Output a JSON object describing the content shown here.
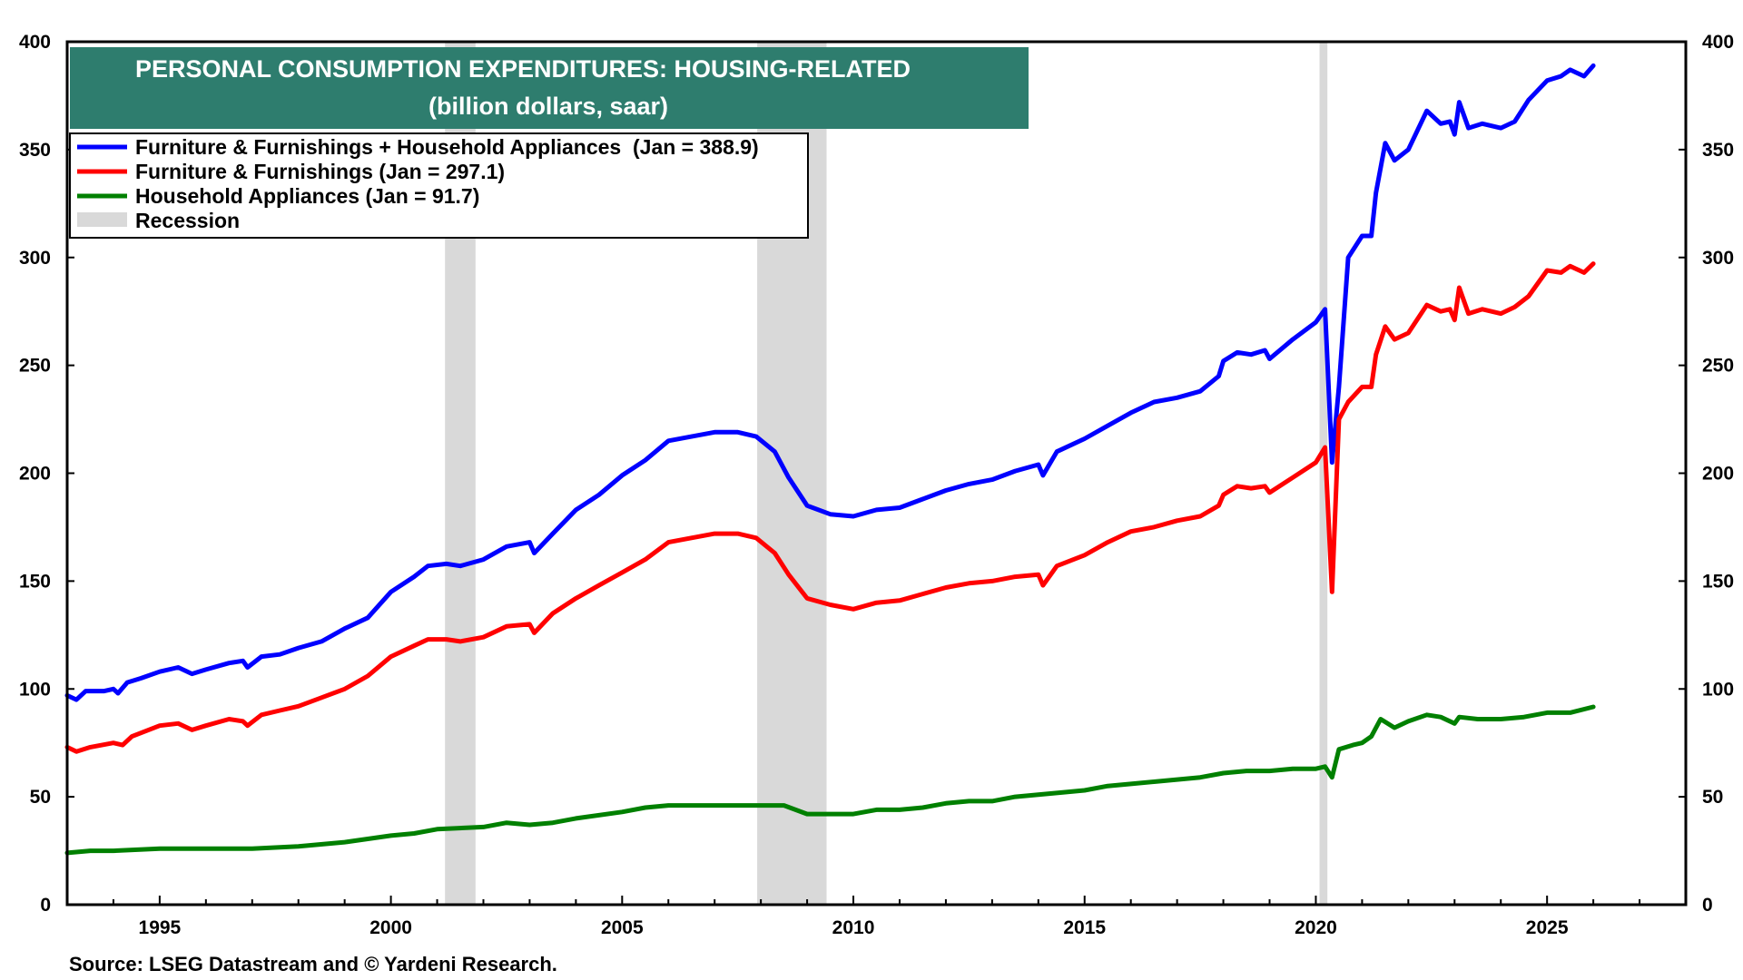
{
  "chart_data": {
    "type": "line",
    "title": "PERSONAL CONSUMPTION EXPENDITURES: HOUSING-RELATED",
    "subtitle": "(billion dollars, saar)",
    "source": "Source: LSEG Datastream and © Yardeni Research.",
    "xlim": [
      1993.0,
      2028.0
    ],
    "ylim": [
      0,
      400
    ],
    "y_ticks": [
      0,
      50,
      100,
      150,
      200,
      250,
      300,
      350,
      400
    ],
    "x_ticks": [
      1995,
      2000,
      2005,
      2010,
      2015,
      2020,
      2025
    ],
    "y_tick_labels": [
      "0",
      "50",
      "100",
      "150",
      "200",
      "250",
      "300",
      "350",
      "400"
    ],
    "x_tick_labels": [
      "1995",
      "2000",
      "2005",
      "2010",
      "2015",
      "2020",
      "2025"
    ],
    "legend_placement": "top-left",
    "recession_label": "Recession",
    "recessions": [
      [
        2001.17,
        2001.83
      ],
      [
        2007.92,
        2009.42
      ],
      [
        2020.08,
        2020.25
      ]
    ],
    "series": [
      {
        "name": "Furniture & Furnishings + Household Appliances  (Jan = 388.9)",
        "color": "#0000ff",
        "points": [
          [
            1993.0,
            97
          ],
          [
            1993.2,
            95
          ],
          [
            1993.4,
            99
          ],
          [
            1993.8,
            99
          ],
          [
            1994.0,
            100
          ],
          [
            1994.1,
            98
          ],
          [
            1994.3,
            103
          ],
          [
            1994.6,
            105
          ],
          [
            1995.0,
            108
          ],
          [
            1995.4,
            110
          ],
          [
            1995.7,
            107
          ],
          [
            1996.0,
            109
          ],
          [
            1996.5,
            112
          ],
          [
            1996.8,
            113
          ],
          [
            1996.9,
            110
          ],
          [
            1997.2,
            115
          ],
          [
            1997.6,
            116
          ],
          [
            1998.0,
            119
          ],
          [
            1998.5,
            122
          ],
          [
            1999.0,
            128
          ],
          [
            1999.5,
            133
          ],
          [
            2000.0,
            145
          ],
          [
            2000.5,
            152
          ],
          [
            2000.8,
            157
          ],
          [
            2001.2,
            158
          ],
          [
            2001.5,
            157
          ],
          [
            2002.0,
            160
          ],
          [
            2002.5,
            166
          ],
          [
            2003.0,
            168
          ],
          [
            2003.1,
            163
          ],
          [
            2003.5,
            172
          ],
          [
            2004.0,
            183
          ],
          [
            2004.5,
            190
          ],
          [
            2005.0,
            199
          ],
          [
            2005.5,
            206
          ],
          [
            2006.0,
            215
          ],
          [
            2006.5,
            217
          ],
          [
            2007.0,
            219
          ],
          [
            2007.5,
            219
          ],
          [
            2007.9,
            217
          ],
          [
            2008.3,
            210
          ],
          [
            2008.6,
            198
          ],
          [
            2009.0,
            185
          ],
          [
            2009.5,
            181
          ],
          [
            2010.0,
            180
          ],
          [
            2010.5,
            183
          ],
          [
            2011.0,
            184
          ],
          [
            2011.5,
            188
          ],
          [
            2012.0,
            192
          ],
          [
            2012.5,
            195
          ],
          [
            2013.0,
            197
          ],
          [
            2013.5,
            201
          ],
          [
            2014.0,
            204
          ],
          [
            2014.1,
            199
          ],
          [
            2014.4,
            210
          ],
          [
            2015.0,
            216
          ],
          [
            2015.5,
            222
          ],
          [
            2016.0,
            228
          ],
          [
            2016.5,
            233
          ],
          [
            2017.0,
            235
          ],
          [
            2017.5,
            238
          ],
          [
            2017.9,
            245
          ],
          [
            2018.0,
            252
          ],
          [
            2018.3,
            256
          ],
          [
            2018.6,
            255
          ],
          [
            2018.9,
            257
          ],
          [
            2019.0,
            253
          ],
          [
            2019.5,
            262
          ],
          [
            2020.0,
            270
          ],
          [
            2020.2,
            276
          ],
          [
            2020.35,
            205
          ],
          [
            2020.5,
            240
          ],
          [
            2020.7,
            300
          ],
          [
            2021.0,
            310
          ],
          [
            2021.2,
            310
          ],
          [
            2021.3,
            330
          ],
          [
            2021.5,
            353
          ],
          [
            2021.7,
            345
          ],
          [
            2022.0,
            350
          ],
          [
            2022.4,
            368
          ],
          [
            2022.7,
            362
          ],
          [
            2022.9,
            363
          ],
          [
            2023.0,
            357
          ],
          [
            2023.1,
            372
          ],
          [
            2023.3,
            360
          ],
          [
            2023.6,
            362
          ],
          [
            2024.0,
            360
          ],
          [
            2024.3,
            363
          ],
          [
            2024.6,
            373
          ],
          [
            2025.0,
            382
          ],
          [
            2025.3,
            384
          ],
          [
            2025.5,
            387
          ],
          [
            2025.8,
            384
          ],
          [
            2026.0,
            388.9
          ]
        ]
      },
      {
        "name": "Furniture & Furnishings (Jan = 297.1)",
        "color": "#ff0000",
        "points": [
          [
            1993.0,
            73
          ],
          [
            1993.2,
            71
          ],
          [
            1993.5,
            73
          ],
          [
            1994.0,
            75
          ],
          [
            1994.2,
            74
          ],
          [
            1994.4,
            78
          ],
          [
            1995.0,
            83
          ],
          [
            1995.4,
            84
          ],
          [
            1995.7,
            81
          ],
          [
            1996.0,
            83
          ],
          [
            1996.5,
            86
          ],
          [
            1996.8,
            85
          ],
          [
            1996.9,
            83
          ],
          [
            1997.2,
            88
          ],
          [
            1997.6,
            90
          ],
          [
            1998.0,
            92
          ],
          [
            1998.5,
            96
          ],
          [
            1999.0,
            100
          ],
          [
            1999.5,
            106
          ],
          [
            2000.0,
            115
          ],
          [
            2000.5,
            120
          ],
          [
            2000.8,
            123
          ],
          [
            2001.2,
            123
          ],
          [
            2001.5,
            122
          ],
          [
            2002.0,
            124
          ],
          [
            2002.5,
            129
          ],
          [
            2003.0,
            130
          ],
          [
            2003.1,
            126
          ],
          [
            2003.5,
            135
          ],
          [
            2004.0,
            142
          ],
          [
            2004.5,
            148
          ],
          [
            2005.0,
            154
          ],
          [
            2005.5,
            160
          ],
          [
            2006.0,
            168
          ],
          [
            2006.5,
            170
          ],
          [
            2007.0,
            172
          ],
          [
            2007.5,
            172
          ],
          [
            2007.9,
            170
          ],
          [
            2008.3,
            163
          ],
          [
            2008.6,
            153
          ],
          [
            2009.0,
            142
          ],
          [
            2009.5,
            139
          ],
          [
            2010.0,
            137
          ],
          [
            2010.5,
            140
          ],
          [
            2011.0,
            141
          ],
          [
            2011.5,
            144
          ],
          [
            2012.0,
            147
          ],
          [
            2012.5,
            149
          ],
          [
            2013.0,
            150
          ],
          [
            2013.5,
            152
          ],
          [
            2014.0,
            153
          ],
          [
            2014.1,
            148
          ],
          [
            2014.4,
            157
          ],
          [
            2015.0,
            162
          ],
          [
            2015.5,
            168
          ],
          [
            2016.0,
            173
          ],
          [
            2016.5,
            175
          ],
          [
            2017.0,
            178
          ],
          [
            2017.5,
            180
          ],
          [
            2017.9,
            185
          ],
          [
            2018.0,
            190
          ],
          [
            2018.3,
            194
          ],
          [
            2018.6,
            193
          ],
          [
            2018.9,
            194
          ],
          [
            2019.0,
            191
          ],
          [
            2019.5,
            198
          ],
          [
            2020.0,
            205
          ],
          [
            2020.2,
            212
          ],
          [
            2020.35,
            145
          ],
          [
            2020.5,
            225
          ],
          [
            2020.7,
            233
          ],
          [
            2021.0,
            240
          ],
          [
            2021.2,
            240
          ],
          [
            2021.3,
            255
          ],
          [
            2021.5,
            268
          ],
          [
            2021.7,
            262
          ],
          [
            2022.0,
            265
          ],
          [
            2022.4,
            278
          ],
          [
            2022.7,
            275
          ],
          [
            2022.9,
            276
          ],
          [
            2023.0,
            271
          ],
          [
            2023.1,
            286
          ],
          [
            2023.3,
            274
          ],
          [
            2023.6,
            276
          ],
          [
            2024.0,
            274
          ],
          [
            2024.3,
            277
          ],
          [
            2024.6,
            282
          ],
          [
            2025.0,
            294
          ],
          [
            2025.3,
            293
          ],
          [
            2025.5,
            296
          ],
          [
            2025.8,
            293
          ],
          [
            2026.0,
            297.1
          ]
        ]
      },
      {
        "name": "Household Appliances (Jan = 91.7)",
        "color": "#008000",
        "points": [
          [
            1993.0,
            24
          ],
          [
            1993.5,
            25
          ],
          [
            1994.0,
            25
          ],
          [
            1995.0,
            26
          ],
          [
            1996.0,
            26
          ],
          [
            1997.0,
            26
          ],
          [
            1998.0,
            27
          ],
          [
            1999.0,
            29
          ],
          [
            2000.0,
            32
          ],
          [
            2000.5,
            33
          ],
          [
            2001.0,
            35
          ],
          [
            2002.0,
            36
          ],
          [
            2002.5,
            38
          ],
          [
            2003.0,
            37
          ],
          [
            2003.5,
            38
          ],
          [
            2004.0,
            40
          ],
          [
            2005.0,
            43
          ],
          [
            2005.5,
            45
          ],
          [
            2006.0,
            46
          ],
          [
            2006.5,
            46
          ],
          [
            2007.0,
            46
          ],
          [
            2007.5,
            46
          ],
          [
            2008.0,
            46
          ],
          [
            2008.5,
            46
          ],
          [
            2009.0,
            42
          ],
          [
            2009.5,
            42
          ],
          [
            2010.0,
            42
          ],
          [
            2010.5,
            44
          ],
          [
            2011.0,
            44
          ],
          [
            2011.5,
            45
          ],
          [
            2012.0,
            47
          ],
          [
            2012.5,
            48
          ],
          [
            2013.0,
            48
          ],
          [
            2013.5,
            50
          ],
          [
            2014.0,
            51
          ],
          [
            2014.5,
            52
          ],
          [
            2015.0,
            53
          ],
          [
            2015.5,
            55
          ],
          [
            2016.0,
            56
          ],
          [
            2016.5,
            57
          ],
          [
            2017.0,
            58
          ],
          [
            2017.5,
            59
          ],
          [
            2018.0,
            61
          ],
          [
            2018.5,
            62
          ],
          [
            2019.0,
            62
          ],
          [
            2019.5,
            63
          ],
          [
            2020.0,
            63
          ],
          [
            2020.2,
            64
          ],
          [
            2020.35,
            59
          ],
          [
            2020.5,
            72
          ],
          [
            2020.8,
            74
          ],
          [
            2021.0,
            75
          ],
          [
            2021.2,
            78
          ],
          [
            2021.4,
            86
          ],
          [
            2021.7,
            82
          ],
          [
            2022.0,
            85
          ],
          [
            2022.4,
            88
          ],
          [
            2022.7,
            87
          ],
          [
            2023.0,
            84
          ],
          [
            2023.1,
            87
          ],
          [
            2023.5,
            86
          ],
          [
            2024.0,
            86
          ],
          [
            2024.5,
            87
          ],
          [
            2025.0,
            89
          ],
          [
            2025.5,
            89
          ],
          [
            2026.0,
            91.7
          ]
        ]
      }
    ]
  }
}
